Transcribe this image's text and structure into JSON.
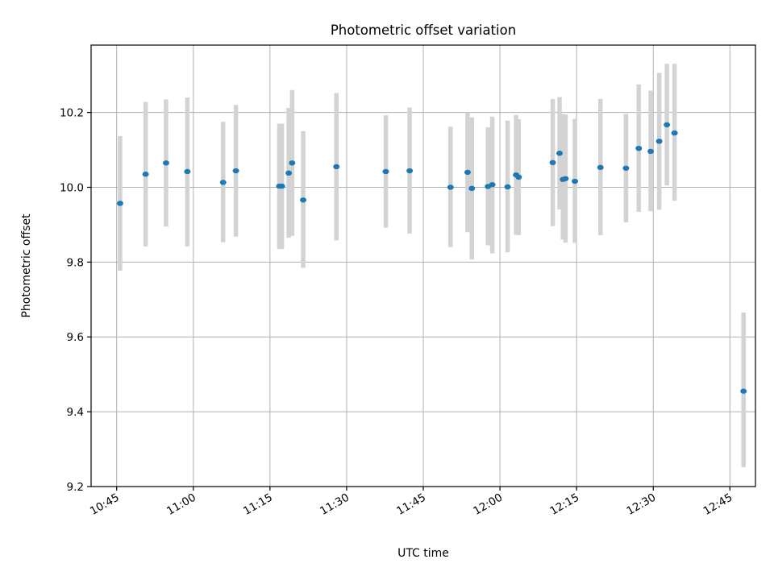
{
  "chart_data": {
    "type": "scatter",
    "title": "Photometric offset variation",
    "xlabel": "UTC time",
    "ylabel": "Photometric offset",
    "xlim": [
      "10:40",
      "12:50"
    ],
    "ylim": [
      9.2,
      10.38
    ],
    "x_ticks": [
      "10:45",
      "11:00",
      "11:15",
      "11:30",
      "11:45",
      "12:00",
      "12:15",
      "12:30",
      "12:45"
    ],
    "y_ticks": [
      "9.2",
      "9.4",
      "9.6",
      "9.8",
      "10.0",
      "10.2"
    ],
    "grid": true,
    "colors": {
      "marker": "#1f77b4",
      "errorbar": "#d3d3d3"
    },
    "points": [
      {
        "t": "10:45:40",
        "y": 9.957,
        "lo": 9.777,
        "hi": 10.137
      },
      {
        "t": "10:50:40",
        "y": 10.035,
        "lo": 9.842,
        "hi": 10.228
      },
      {
        "t": "10:54:40",
        "y": 10.065,
        "lo": 9.895,
        "hi": 10.235
      },
      {
        "t": "10:58:50",
        "y": 10.042,
        "lo": 9.842,
        "hi": 10.24
      },
      {
        "t": "11:05:50",
        "y": 10.013,
        "lo": 9.853,
        "hi": 10.175
      },
      {
        "t": "11:08:20",
        "y": 10.044,
        "lo": 9.868,
        "hi": 10.22
      },
      {
        "t": "11:16:50",
        "y": 10.003,
        "lo": 9.835,
        "hi": 10.17
      },
      {
        "t": "11:17:20",
        "y": 10.003,
        "lo": 9.835,
        "hi": 10.17
      },
      {
        "t": "11:18:40",
        "y": 10.038,
        "lo": 9.865,
        "hi": 10.212
      },
      {
        "t": "11:19:20",
        "y": 10.065,
        "lo": 9.87,
        "hi": 10.26
      },
      {
        "t": "11:21:30",
        "y": 9.966,
        "lo": 9.785,
        "hi": 10.15
      },
      {
        "t": "11:28:00",
        "y": 10.055,
        "lo": 9.858,
        "hi": 10.252
      },
      {
        "t": "11:37:40",
        "y": 10.042,
        "lo": 9.892,
        "hi": 10.192
      },
      {
        "t": "11:42:20",
        "y": 10.044,
        "lo": 9.876,
        "hi": 10.213
      },
      {
        "t": "11:50:20",
        "y": 10.0,
        "lo": 9.84,
        "hi": 10.162
      },
      {
        "t": "11:53:40",
        "y": 10.04,
        "lo": 9.88,
        "hi": 10.2
      },
      {
        "t": "11:54:30",
        "y": 9.997,
        "lo": 9.807,
        "hi": 10.187
      },
      {
        "t": "11:57:40",
        "y": 10.002,
        "lo": 9.845,
        "hi": 10.16
      },
      {
        "t": "11:58:30",
        "y": 10.007,
        "lo": 9.823,
        "hi": 10.189
      },
      {
        "t": "12:01:30",
        "y": 10.001,
        "lo": 9.826,
        "hi": 10.178
      },
      {
        "t": "12:03:10",
        "y": 10.033,
        "lo": 9.873,
        "hi": 10.193
      },
      {
        "t": "12:03:40",
        "y": 10.027,
        "lo": 9.872,
        "hi": 10.182
      },
      {
        "t": "12:10:20",
        "y": 10.066,
        "lo": 9.896,
        "hi": 10.236
      },
      {
        "t": "12:11:40",
        "y": 10.091,
        "lo": 9.941,
        "hi": 10.241
      },
      {
        "t": "12:12:20",
        "y": 10.021,
        "lo": 9.86,
        "hi": 10.196
      },
      {
        "t": "12:12:50",
        "y": 10.023,
        "lo": 9.852,
        "hi": 10.195
      },
      {
        "t": "12:14:40",
        "y": 10.016,
        "lo": 9.851,
        "hi": 10.183
      },
      {
        "t": "12:19:40",
        "y": 10.053,
        "lo": 9.872,
        "hi": 10.236
      },
      {
        "t": "12:24:40",
        "y": 10.051,
        "lo": 9.906,
        "hi": 10.196
      },
      {
        "t": "12:27:10",
        "y": 10.104,
        "lo": 9.934,
        "hi": 10.275
      },
      {
        "t": "12:29:30",
        "y": 10.096,
        "lo": 9.936,
        "hi": 10.258
      },
      {
        "t": "12:31:10",
        "y": 10.123,
        "lo": 9.94,
        "hi": 10.306
      },
      {
        "t": "12:32:40",
        "y": 10.167,
        "lo": 10.005,
        "hi": 10.33
      },
      {
        "t": "12:34:10",
        "y": 10.145,
        "lo": 9.964,
        "hi": 10.33
      },
      {
        "t": "12:47:40",
        "y": 9.455,
        "lo": 9.252,
        "hi": 9.665
      }
    ]
  }
}
